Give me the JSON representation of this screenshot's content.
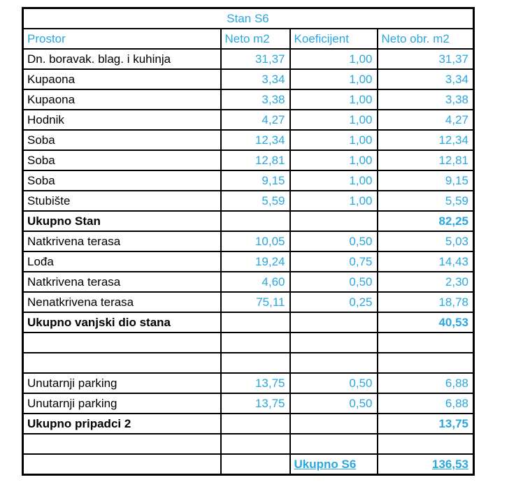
{
  "colors": {
    "accent": "#2aa7de",
    "border": "#000000",
    "background": "#ffffff",
    "label_text": "#000000"
  },
  "table": {
    "title": "Stan S6",
    "headers": [
      "Prostor",
      "Neto m2",
      "Koeficijent",
      "Neto obr. m2"
    ],
    "rows": [
      {
        "type": "data",
        "cells": [
          "Dn. boravak. blag. i kuhinja",
          "31,37",
          "1,00",
          "31,37"
        ]
      },
      {
        "type": "data",
        "cells": [
          "Kupaona",
          "3,34",
          "1,00",
          "3,34"
        ]
      },
      {
        "type": "data",
        "cells": [
          "Kupaona",
          "3,38",
          "1,00",
          "3,38"
        ]
      },
      {
        "type": "data",
        "cells": [
          "Hodnik",
          "4,27",
          "1,00",
          "4,27"
        ]
      },
      {
        "type": "data",
        "cells": [
          "Soba",
          "12,34",
          "1,00",
          "12,34"
        ]
      },
      {
        "type": "data",
        "cells": [
          "Soba",
          "12,81",
          "1,00",
          "12,81"
        ]
      },
      {
        "type": "data",
        "cells": [
          "Soba",
          "9,15",
          "1,00",
          "9,15"
        ]
      },
      {
        "type": "data",
        "cells": [
          "Stubište",
          "5,59",
          "1,00",
          "5,59"
        ]
      },
      {
        "type": "total",
        "cells": [
          "Ukupno Stan",
          "",
          "",
          "82,25"
        ]
      },
      {
        "type": "data",
        "cells": [
          "Natkrivena terasa",
          "10,05",
          "0,50",
          "5,03"
        ]
      },
      {
        "type": "data",
        "cells": [
          "Lođa",
          "19,24",
          "0,75",
          "14,43"
        ]
      },
      {
        "type": "data",
        "cells": [
          "Natkrivena terasa",
          "4,60",
          "0,50",
          "2,30"
        ]
      },
      {
        "type": "data",
        "cells": [
          "Nenatkrivena terasa",
          "75,11",
          "0,25",
          "18,78"
        ]
      },
      {
        "type": "total",
        "cells": [
          "Ukupno vanjski dio stana",
          "",
          "",
          "40,53"
        ]
      },
      {
        "type": "empty",
        "cells": [
          "",
          "",
          "",
          ""
        ]
      },
      {
        "type": "empty",
        "cells": [
          "",
          "",
          "",
          ""
        ]
      },
      {
        "type": "data",
        "cells": [
          "Unutarnji parking",
          "13,75",
          "0,50",
          "6,88"
        ]
      },
      {
        "type": "data",
        "cells": [
          "Unutarnji parking",
          "13,75",
          "0,50",
          "6,88"
        ]
      },
      {
        "type": "total",
        "cells": [
          "Ukupno pripadci 2",
          "",
          "",
          "13,75"
        ]
      },
      {
        "type": "empty",
        "cells": [
          "",
          "",
          "",
          ""
        ]
      },
      {
        "type": "grand",
        "cells": [
          "",
          "",
          "Ukupno S6",
          "136,53"
        ]
      }
    ]
  }
}
